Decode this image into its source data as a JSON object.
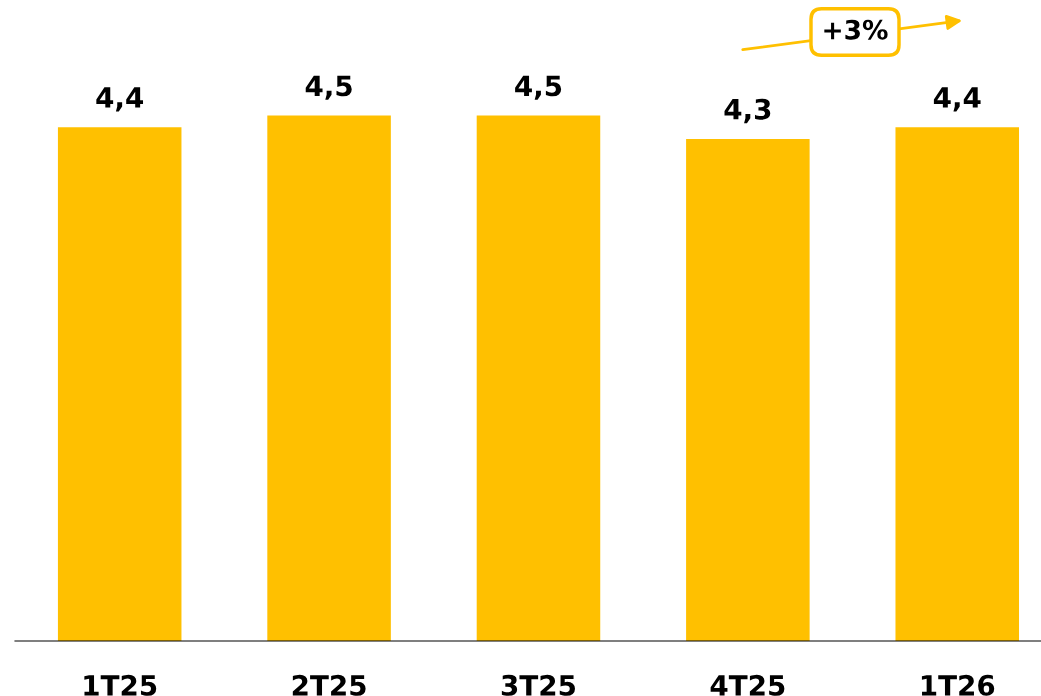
{
  "chart_data": {
    "type": "bar",
    "categories": [
      "1T25",
      "2T25",
      "3T25",
      "4T25",
      "1T26"
    ],
    "values": [
      4.4,
      4.5,
      4.5,
      4.3,
      4.4
    ],
    "value_labels": [
      "4,4",
      "4,5",
      "4,5",
      "4,3",
      "4,4"
    ],
    "color": "#ffc000",
    "annotations": [
      "+3%"
    ],
    "grid": false,
    "legend": false
  }
}
